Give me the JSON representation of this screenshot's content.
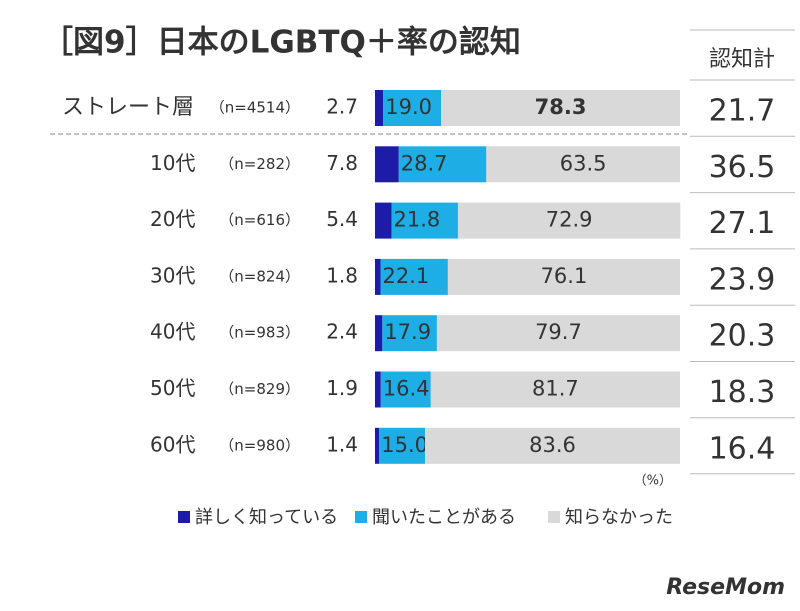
{
  "chart_data": {
    "type": "stacked-bar-horizontal",
    "title": "［図9］日本のLGBTQ＋率の認知",
    "categories": [
      "ストレート層",
      "10代",
      "20代",
      "30代",
      "40代",
      "50代",
      "60代"
    ],
    "sample_labels": [
      "（n=4514）",
      "（n=282）",
      "（n=616）",
      "（n=824）",
      "（n=983）",
      "（n=829）",
      "（n=980）"
    ],
    "series": [
      {
        "name": "詳しく知っている",
        "color": "#1c1ca8",
        "values": [
          2.7,
          7.8,
          5.4,
          1.8,
          2.4,
          1.9,
          1.4
        ]
      },
      {
        "name": "聞いたことがある",
        "color": "#1eaee6",
        "values": [
          19.0,
          28.7,
          21.8,
          22.1,
          17.9,
          16.4,
          15.0
        ],
        "value_labels": [
          "19.0",
          "28.7",
          "21.8",
          "22.1",
          "17.9",
          "16.4",
          "15.0"
        ]
      },
      {
        "name": "知らなかった",
        "color": "#d9d9d9",
        "values": [
          78.3,
          63.5,
          72.9,
          76.1,
          79.7,
          81.7,
          83.6
        ]
      }
    ],
    "xlim": [
      0,
      100
    ],
    "unit": "（%）",
    "totals": {
      "header": "認知計",
      "values": [
        21.7,
        36.5,
        27.1,
        23.9,
        20.3,
        18.3,
        16.4
      ]
    },
    "watermark": "ReseMom"
  }
}
